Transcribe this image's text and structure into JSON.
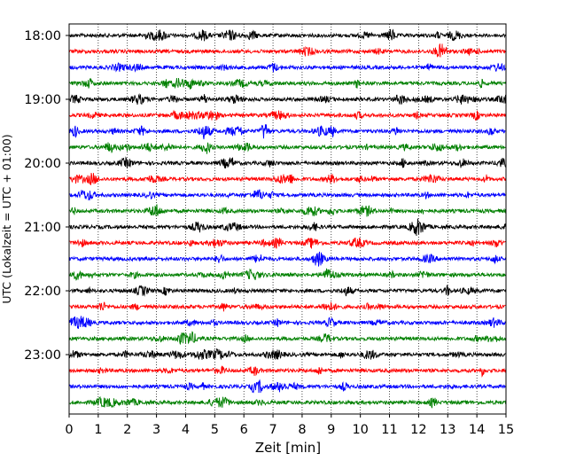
{
  "chart_data": {
    "type": "line",
    "chart_kind": "helicorder seismogram",
    "xlabel": "Zeit  [min]",
    "ylabel": "UTC (Lokalzeit = UTC + 01:00)",
    "xlim": [
      0,
      15
    ],
    "x_ticks": [
      0,
      1,
      2,
      3,
      4,
      5,
      6,
      7,
      8,
      9,
      10,
      11,
      12,
      13,
      14,
      15
    ],
    "x_grid": true,
    "y_ticks": [
      "18:00",
      "19:00",
      "20:00",
      "21:00",
      "22:00",
      "23:00"
    ],
    "trace_interval_min": 15,
    "trace_count": 24,
    "first_trace": "18:00",
    "last_trace": "23:45",
    "trace_colors": [
      "#000000",
      "#ff0000",
      "#0000ff",
      "#008000"
    ]
  }
}
